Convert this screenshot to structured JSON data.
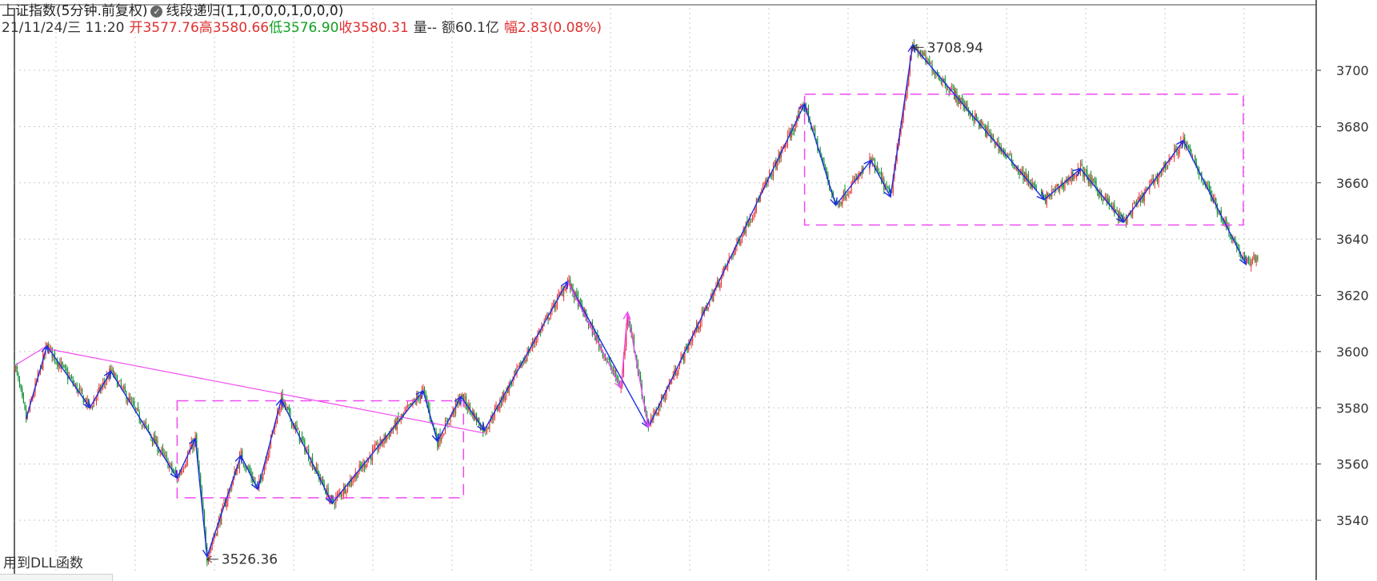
{
  "header": {
    "indicator_title": "上证指数(5分钟.前复权)",
    "indicator_name": "线段递归",
    "indicator_params": "(1,1,0,0,0,1,0,0,0)",
    "datetime": "21/11/24/三 11:20",
    "open_label": "开",
    "open_value": "3577.76",
    "high_label": "高",
    "high_value": "3580.66",
    "low_label": "低",
    "low_value": "3576.90",
    "close_label": "收",
    "close_value": "3580.31",
    "volume_label": "量",
    "volume_value": "--",
    "amount_label": "额",
    "amount_value": "60.1亿",
    "range_label": "幅",
    "range_value": "2.83(0.08%)"
  },
  "footer": {
    "note": "用到DLL函数"
  },
  "colors": {
    "up": "#e83838",
    "down": "#0f8f2f",
    "segment": "#1c2fe0",
    "trend": "#f04af0",
    "grid": "#c8c8c8",
    "axis": "#333333"
  },
  "chart_data": {
    "type": "candlestick",
    "interval": "5min",
    "y_axis_ticks": [
      3540,
      3560,
      3580,
      3600,
      3620,
      3640,
      3660,
      3680,
      3700
    ],
    "ylim": [
      3514,
      3716
    ],
    "xlim": [
      0,
      1000
    ],
    "pivots": [
      {
        "i": 0,
        "v": 3596
      },
      {
        "i": 9,
        "v": 3576
      },
      {
        "i": 25,
        "v": 3602
      },
      {
        "i": 58,
        "v": 3580
      },
      {
        "i": 74,
        "v": 3593
      },
      {
        "i": 125,
        "v": 3555
      },
      {
        "i": 139,
        "v": 3569
      },
      {
        "i": 148,
        "v": 3527
      },
      {
        "i": 174,
        "v": 3563
      },
      {
        "i": 187,
        "v": 3551
      },
      {
        "i": 205,
        "v": 3583
      },
      {
        "i": 244,
        "v": 3546
      },
      {
        "i": 314,
        "v": 3586
      },
      {
        "i": 325,
        "v": 3568
      },
      {
        "i": 343,
        "v": 3584
      },
      {
        "i": 361,
        "v": 3572
      },
      {
        "i": 425,
        "v": 3625
      },
      {
        "i": 466,
        "v": 3587
      },
      {
        "i": 471,
        "v": 3614
      },
      {
        "i": 487,
        "v": 3573
      },
      {
        "i": 607,
        "v": 3688
      },
      {
        "i": 631,
        "v": 3652
      },
      {
        "i": 658,
        "v": 3668
      },
      {
        "i": 673,
        "v": 3655
      },
      {
        "i": 690,
        "v": 3709
      },
      {
        "i": 791,
        "v": 3654
      },
      {
        "i": 819,
        "v": 3665
      },
      {
        "i": 852,
        "v": 3646
      },
      {
        "i": 898,
        "v": 3675
      },
      {
        "i": 946,
        "v": 3631
      },
      {
        "i": 955,
        "v": 3634
      }
    ],
    "segments": [
      {
        "from": 9,
        "to": 25,
        "color": "segment"
      },
      {
        "from": 25,
        "to": 58,
        "color": "segment"
      },
      {
        "from": 58,
        "to": 74,
        "color": "segment"
      },
      {
        "from": 74,
        "to": 125,
        "color": "segment"
      },
      {
        "from": 125,
        "to": 139,
        "color": "segment"
      },
      {
        "from": 139,
        "to": 148,
        "color": "segment"
      },
      {
        "from": 148,
        "to": 174,
        "color": "segment"
      },
      {
        "from": 174,
        "to": 187,
        "color": "segment"
      },
      {
        "from": 187,
        "to": 205,
        "color": "segment"
      },
      {
        "from": 205,
        "to": 244,
        "color": "segment"
      },
      {
        "from": 244,
        "to": 314,
        "color": "segment"
      },
      {
        "from": 314,
        "to": 325,
        "color": "segment"
      },
      {
        "from": 325,
        "to": 343,
        "color": "segment"
      },
      {
        "from": 343,
        "to": 361,
        "color": "segment"
      },
      {
        "from": 361,
        "to": 425,
        "color": "segment"
      },
      {
        "from": 425,
        "to": 487,
        "color": "segment"
      },
      {
        "from": 487,
        "to": 607,
        "color": "segment"
      },
      {
        "from": 607,
        "to": 631,
        "color": "segment"
      },
      {
        "from": 631,
        "to": 658,
        "color": "segment"
      },
      {
        "from": 658,
        "to": 673,
        "color": "segment"
      },
      {
        "from": 673,
        "to": 690,
        "color": "segment"
      },
      {
        "from": 690,
        "to": 791,
        "color": "segment"
      },
      {
        "from": 791,
        "to": 819,
        "color": "segment"
      },
      {
        "from": 819,
        "to": 852,
        "color": "segment"
      },
      {
        "from": 852,
        "to": 898,
        "color": "segment"
      },
      {
        "from": 898,
        "to": 946,
        "color": "segment"
      },
      {
        "from": 425,
        "to": 466,
        "color": "trend"
      },
      {
        "from": 466,
        "to": 471,
        "color": "trend"
      },
      {
        "from": 471,
        "to": 487,
        "color": "trend"
      }
    ],
    "trendlines": [
      {
        "x1": 0,
        "y1": 3595,
        "x2": 25,
        "y2": 3602
      },
      {
        "x1": 25,
        "y1": 3601,
        "x2": 361,
        "y2": 3571
      }
    ],
    "boxes": [
      {
        "x1": 125,
        "x2": 345,
        "y_top": 3582.5,
        "y_bottom": 3548
      },
      {
        "x1": 607,
        "x2": 944,
        "y_top": 3691.5,
        "y_bottom": 3645
      }
    ],
    "extreme_labels": [
      {
        "text": "3708.94",
        "i": 690,
        "v": 3709
      },
      {
        "text": "3526.36",
        "i": 148,
        "v": 3527
      }
    ]
  }
}
